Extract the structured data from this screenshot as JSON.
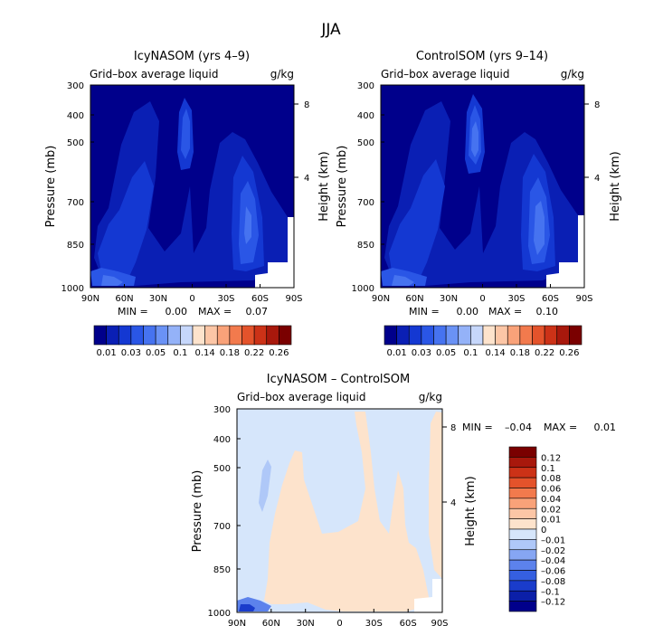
{
  "figure_title": "JJA",
  "chart_data": [
    {
      "type": "heatmap",
      "title": "IcyNASOM (yrs 4–9)",
      "subtitle": "Grid–box average liquid",
      "units": "g/kg",
      "ylabel": "Pressure (mb)",
      "y2label": "Height (km)",
      "x_ticks": [
        "90N",
        "60N",
        "30N",
        "0",
        "30S",
        "60S",
        "90S"
      ],
      "y_ticks": [
        "300",
        "400",
        "500",
        "700",
        "850",
        "1000"
      ],
      "y2_ticks": [
        "8",
        "4"
      ],
      "min_label": "MIN =",
      "min_value": "0.00",
      "max_label": "MAX =",
      "max_value": "0.07",
      "colorbar_orientation": "horizontal",
      "colorbar_labels": [
        "0.01",
        "0.03",
        "0.05",
        "0.1",
        "0.14",
        "0.18",
        "0.22",
        "0.26"
      ],
      "colors": [
        "#00008b",
        "#0a1fb4",
        "#1438d2",
        "#2a56e6",
        "#4673f0",
        "#6a92f5",
        "#94b2f8",
        "#c6d7fb",
        "#fde3cc",
        "#fcc6a6",
        "#f9a279",
        "#f27a4d",
        "#e4532b",
        "#cc3217",
        "#a8180c",
        "#7a0000"
      ]
    },
    {
      "type": "heatmap",
      "title": "ControlSOM (yrs 9–14)",
      "subtitle": "Grid–box average liquid",
      "units": "g/kg",
      "ylabel": "Pressure (mb)",
      "y2label": "Height (km)",
      "x_ticks": [
        "90N",
        "60N",
        "30N",
        "0",
        "30S",
        "60S",
        "90S"
      ],
      "y_ticks": [
        "300",
        "400",
        "500",
        "700",
        "850",
        "1000"
      ],
      "y2_ticks": [
        "8",
        "4"
      ],
      "min_label": "MIN =",
      "min_value": "0.00",
      "max_label": "MAX =",
      "max_value": "0.10",
      "colorbar_orientation": "horizontal",
      "colorbar_labels": [
        "0.01",
        "0.03",
        "0.05",
        "0.1",
        "0.14",
        "0.18",
        "0.22",
        "0.26"
      ],
      "colors": [
        "#00008b",
        "#0a1fb4",
        "#1438d2",
        "#2a56e6",
        "#4673f0",
        "#6a92f5",
        "#94b2f8",
        "#c6d7fb",
        "#fde3cc",
        "#fcc6a6",
        "#f9a279",
        "#f27a4d",
        "#e4532b",
        "#cc3217",
        "#a8180c",
        "#7a0000"
      ]
    },
    {
      "type": "heatmap",
      "title": "IcyNASOM – ControlSOM",
      "subtitle": "Grid–box average liquid",
      "units": "g/kg",
      "ylabel": "Pressure (mb)",
      "y2label": "Height (km)",
      "x_ticks": [
        "90N",
        "60N",
        "30N",
        "0",
        "30S",
        "60S",
        "90S"
      ],
      "y_ticks": [
        "300",
        "400",
        "500",
        "700",
        "850",
        "1000"
      ],
      "y2_ticks": [
        "8",
        "4"
      ],
      "min_label": "MIN =",
      "min_value": "–0.04",
      "max_label": "MAX =",
      "max_value": "0.01",
      "colorbar_orientation": "vertical",
      "colorbar_labels": [
        "0.12",
        "0.1",
        "0.08",
        "0.06",
        "0.04",
        "0.02",
        "0.01",
        "0",
        "–0.01",
        "–0.02",
        "–0.04",
        "–0.06",
        "–0.08",
        "–0.1",
        "–0.12"
      ],
      "colors": [
        "#7a0000",
        "#a8180c",
        "#cc3217",
        "#e4532b",
        "#f27a4d",
        "#f9a279",
        "#fcc6a6",
        "#fde3cc",
        "#d6e6fb",
        "#afc8f8",
        "#86a6f3",
        "#5c82ec",
        "#355fe0",
        "#1a3ccb",
        "#0b1fa8",
        "#00008b"
      ]
    }
  ]
}
